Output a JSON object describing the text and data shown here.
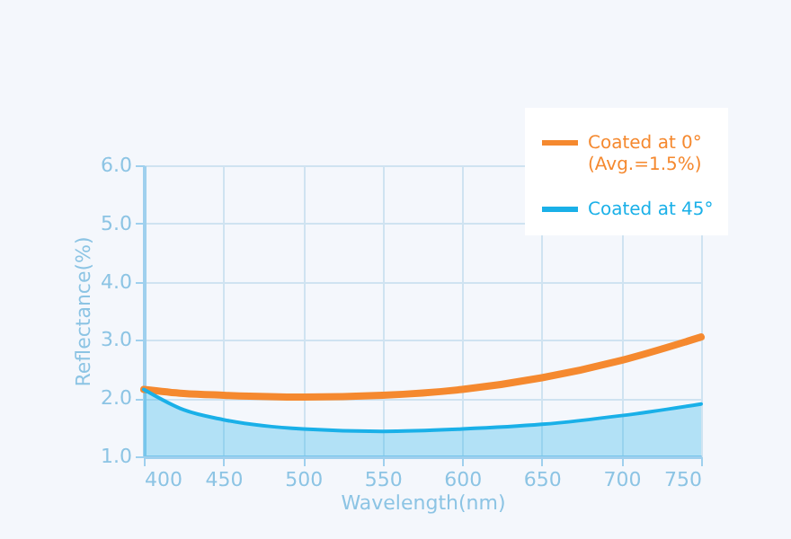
{
  "chart_data": {
    "type": "line",
    "xlabel": "Wavelength(nm)",
    "ylabel": "Reflectance(%)",
    "xlim": [
      400,
      750
    ],
    "xticks": [
      400,
      450,
      500,
      550,
      600,
      650,
      700,
      750
    ],
    "ylim": [
      1.0,
      6.0
    ],
    "yticks": [
      {
        "value": 1,
        "label": "1.0"
      },
      {
        "value": 2,
        "label": "2.0"
      },
      {
        "value": 3,
        "label": "3.0"
      },
      {
        "value": 4,
        "label": "4.0"
      },
      {
        "value": 5,
        "label": "5.0"
      },
      {
        "value": 6,
        "label": "6.0"
      }
    ],
    "grid": true,
    "legend": "top right",
    "series": [
      {
        "name": "Coated at 0°\n(Avg.=1.5%)",
        "color": "#f5892f",
        "type": "line",
        "x": [
          400,
          425,
          450,
          500,
          550,
          600,
          650,
          700,
          750
        ],
        "values": [
          2.15,
          2.08,
          2.05,
          2.02,
          2.05,
          2.15,
          2.35,
          2.65,
          3.05
        ]
      },
      {
        "name": "Coated at 45°",
        "color": "#1ab0e8",
        "type": "area",
        "x": [
          400,
          425,
          450,
          500,
          550,
          600,
          650,
          700,
          750
        ],
        "values": [
          2.15,
          1.8,
          1.63,
          1.47,
          1.43,
          1.47,
          1.55,
          1.7,
          1.9
        ]
      }
    ]
  }
}
